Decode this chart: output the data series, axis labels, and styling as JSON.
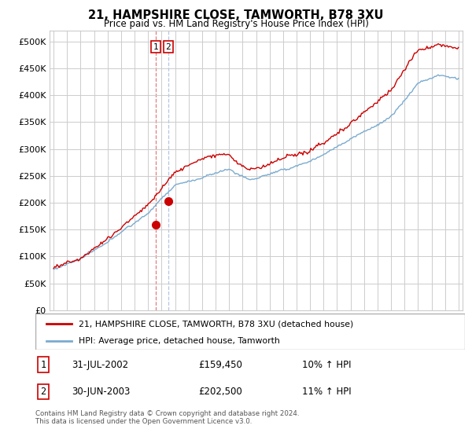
{
  "title": "21, HAMPSHIRE CLOSE, TAMWORTH, B78 3XU",
  "subtitle": "Price paid vs. HM Land Registry's House Price Index (HPI)",
  "legend_line1": "21, HAMPSHIRE CLOSE, TAMWORTH, B78 3XU (detached house)",
  "legend_line2": "HPI: Average price, detached house, Tamworth",
  "footer": "Contains HM Land Registry data © Crown copyright and database right 2024.\nThis data is licensed under the Open Government Licence v3.0.",
  "transaction1_date": "31-JUL-2002",
  "transaction1_price": "£159,450",
  "transaction1_hpi": "10% ↑ HPI",
  "transaction2_date": "30-JUN-2003",
  "transaction2_price": "£202,500",
  "transaction2_hpi": "11% ↑ HPI",
  "red_color": "#cc0000",
  "blue_color": "#7aabcf",
  "grid_color": "#cccccc",
  "background_color": "#ffffff",
  "ylim_min": 0,
  "ylim_max": 520000,
  "yticks": [
    0,
    50000,
    100000,
    150000,
    200000,
    250000,
    300000,
    350000,
    400000,
    450000,
    500000
  ],
  "ytick_labels": [
    "£0",
    "£50K",
    "£100K",
    "£150K",
    "£200K",
    "£250K",
    "£300K",
    "£350K",
    "£400K",
    "£450K",
    "£500K"
  ],
  "transaction1_x": 2002.58,
  "transaction1_y": 159450,
  "transaction2_x": 2003.5,
  "transaction2_y": 202500,
  "vline1_x": 2002.58,
  "vline2_x": 2003.5,
  "xmin": 1994.7,
  "xmax": 2025.3
}
